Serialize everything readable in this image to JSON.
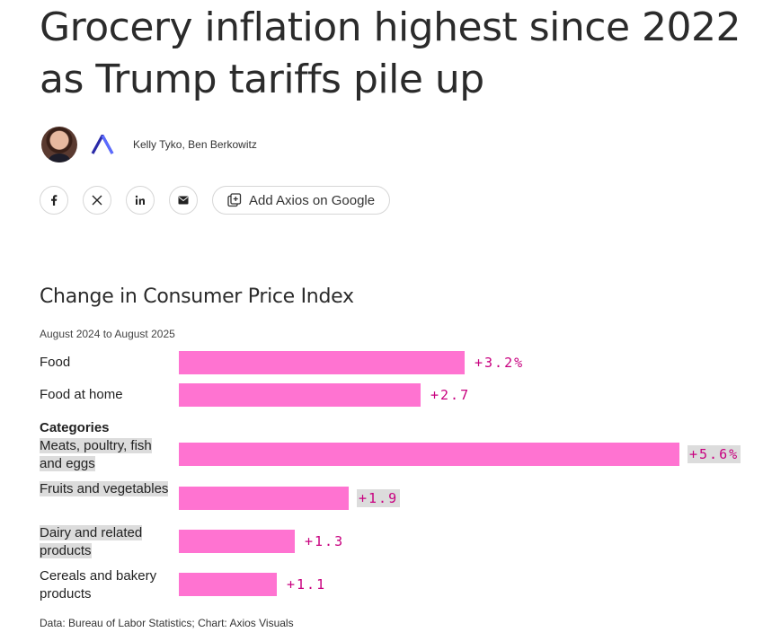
{
  "article": {
    "headline": "Grocery inflation highest since 2022 as Trump tariffs pile up",
    "authors": "Kelly Tyko, Ben Berkowitz",
    "share_icons": [
      "facebook-icon",
      "x-icon",
      "linkedin-icon",
      "email-icon"
    ],
    "google_button_label": "Add Axios on Google"
  },
  "chart_data": {
    "type": "bar",
    "orientation": "horizontal",
    "title": "Change in Consumer Price Index",
    "subtitle": "August 2024 to August 2025",
    "group_heading": "Categories",
    "categories": [
      "Food",
      "Food at home",
      "Meats, poultry, fish and eggs",
      "Fruits and vegetables",
      "Dairy and related products",
      "Cereals and bakery products"
    ],
    "values": [
      3.2,
      2.7,
      5.6,
      1.9,
      1.3,
      1.1
    ],
    "value_labels": [
      "+3.2%",
      "+2.7",
      "+5.6%",
      "+1.9",
      "+1.3",
      "+1.1"
    ],
    "unit": "%",
    "bar_color": "#ff73d1",
    "label_color": "#c8007f",
    "source": "Data: Bureau of Labor Statistics; Chart: Axios Visuals"
  }
}
